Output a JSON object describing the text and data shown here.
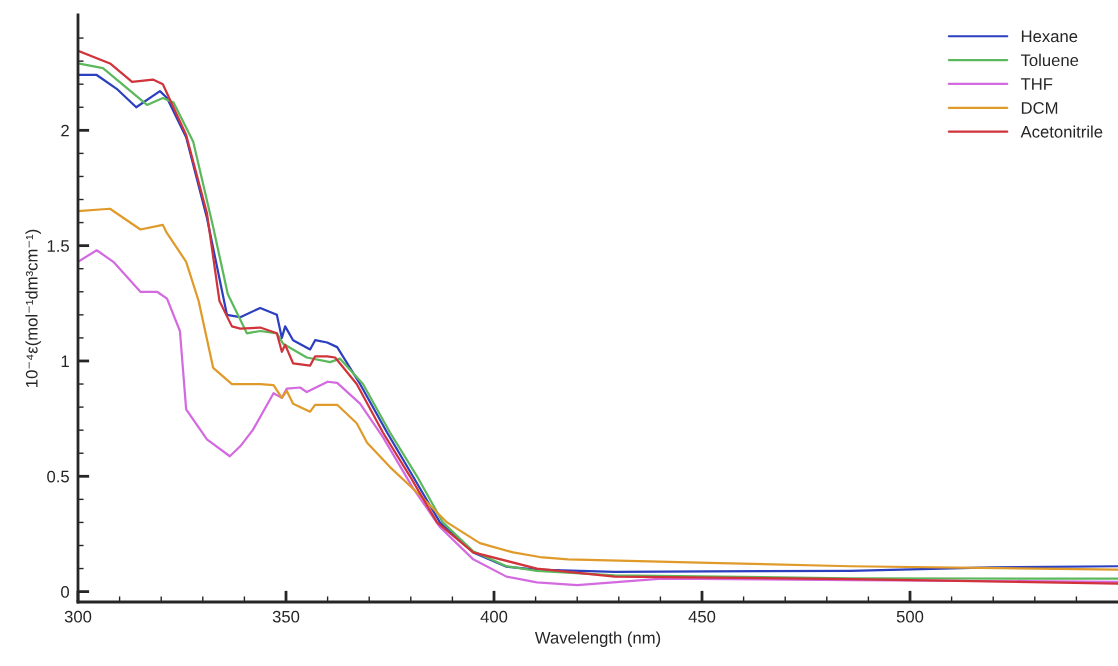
{
  "chart_data": {
    "type": "line",
    "xlabel": "Wavelength (nm)",
    "ylabel": "10⁻⁴ε(mol⁻¹dm³cm⁻¹)",
    "xlim": [
      300,
      550
    ],
    "ylim": [
      -0.045,
      2.5
    ],
    "xticks": [
      300,
      {
        "value": 310,
        "label": null
      },
      {
        "value": 320,
        "label": null
      },
      {
        "value": 330,
        "label": null
      },
      {
        "value": 340,
        "label": null
      },
      350,
      {
        "value": 360,
        "label": null
      },
      {
        "value": 370,
        "label": null
      },
      {
        "value": 380,
        "label": null
      },
      {
        "value": 390,
        "label": null
      },
      400,
      {
        "value": 410,
        "label": null
      },
      {
        "value": 420,
        "label": null
      },
      {
        "value": 430,
        "label": null
      },
      {
        "value": 440,
        "label": null
      },
      450,
      {
        "value": 460,
        "label": null
      },
      {
        "value": 470,
        "label": null
      },
      {
        "value": 480,
        "label": null
      },
      {
        "value": 490,
        "label": null
      },
      500,
      {
        "value": 510,
        "label": null
      },
      {
        "value": 520,
        "label": null
      },
      {
        "value": 530,
        "label": null
      },
      {
        "value": 540,
        "label": null
      }
    ],
    "yticks": [
      0,
      {
        "value": 0.1,
        "label": null
      },
      {
        "value": 0.2,
        "label": null
      },
      {
        "value": 0.3,
        "label": null
      },
      {
        "value": 0.4,
        "label": null
      },
      0.5,
      {
        "value": 0.6,
        "label": null
      },
      {
        "value": 0.7,
        "label": null
      },
      {
        "value": 0.8,
        "label": null
      },
      {
        "value": 0.9,
        "label": null
      },
      1,
      {
        "value": 1.1,
        "label": null
      },
      {
        "value": 1.2,
        "label": null
      },
      {
        "value": 1.3,
        "label": null
      },
      {
        "value": 1.4,
        "label": null
      },
      1.5,
      {
        "value": 1.6,
        "label": null
      },
      {
        "value": 1.7,
        "label": null
      },
      {
        "value": 1.8,
        "label": null
      },
      {
        "value": 1.9,
        "label": null
      },
      2,
      {
        "value": 2.1,
        "label": null
      },
      {
        "value": 2.2,
        "label": null
      },
      {
        "value": 2.3,
        "label": null
      },
      {
        "value": 2.4,
        "label": null
      }
    ],
    "grid": false,
    "legend": "top right",
    "marker": "none",
    "line_style": "solid",
    "series": [
      {
        "name": "Hexane",
        "color": "#2b3fbf",
        "x": [
          300,
          304.5,
          309.3,
          314,
          319.7,
          321.4,
          326,
          331,
          335.8,
          339,
          343.8,
          347.8,
          349,
          349.8,
          351.7,
          355.8,
          357,
          359.9,
          362.3,
          367.8,
          374.3,
          380.5,
          387,
          395,
          403,
          410.3,
          429,
          451.7,
          485.7,
          519.7,
          550
        ],
        "values": [
          2.24,
          2.24,
          2.18,
          2.1,
          2.17,
          2.14,
          1.97,
          1.62,
          1.2,
          1.19,
          1.23,
          1.2,
          1.1,
          1.15,
          1.09,
          1.05,
          1.09,
          1.08,
          1.06,
          0.9,
          0.69,
          0.5,
          0.3,
          0.17,
          0.108,
          0.095,
          0.086,
          0.088,
          0.09,
          0.105,
          0.11
        ]
      },
      {
        "name": "Toluene",
        "color": "#5cb85c",
        "x": [
          300,
          306,
          316.6,
          320.4,
          323,
          327.7,
          332.5,
          336,
          340.6,
          343.8,
          347.8,
          349.3,
          355,
          360.6,
          363,
          368.5,
          375,
          381.5,
          387.7,
          395,
          403,
          410.3,
          429,
          485.7,
          550
        ],
        "values": [
          2.29,
          2.27,
          2.11,
          2.14,
          2.12,
          1.95,
          1.58,
          1.29,
          1.12,
          1.13,
          1.12,
          1.075,
          1.015,
          0.995,
          1.01,
          0.9,
          0.69,
          0.5,
          0.3,
          0.175,
          0.11,
          0.09,
          0.07,
          0.058,
          0.056
        ]
      },
      {
        "name": "THF",
        "color": "#d36ae0",
        "x": [
          300,
          304.5,
          308.5,
          315,
          319,
          321.4,
          324.5,
          326,
          331,
          336.5,
          339,
          342,
          347,
          349,
          350.2,
          353.4,
          355,
          360,
          362.3,
          367.8,
          373.3,
          380.5,
          387,
          395,
          403,
          410.3,
          420,
          440.4,
          485.7,
          550
        ],
        "values": [
          1.43,
          1.48,
          1.43,
          1.3,
          1.3,
          1.27,
          1.13,
          0.79,
          0.66,
          0.587,
          0.63,
          0.7,
          0.86,
          0.84,
          0.88,
          0.885,
          0.865,
          0.91,
          0.905,
          0.815,
          0.67,
          0.45,
          0.28,
          0.14,
          0.065,
          0.04,
          0.028,
          0.056,
          0.05,
          0.042
        ]
      },
      {
        "name": "DCM",
        "color": "#e09a2a",
        "x": [
          300,
          307.7,
          315,
          320.4,
          321.2,
          326,
          329,
          332.5,
          337,
          343.8,
          347,
          349,
          350.2,
          351.7,
          355.8,
          357,
          360.6,
          362.3,
          367,
          369.5,
          375,
          381.5,
          388.7,
          396.6,
          404.6,
          411,
          417.8,
          451.7,
          485.7,
          550
        ],
        "values": [
          1.65,
          1.66,
          1.57,
          1.59,
          1.56,
          1.43,
          1.26,
          0.97,
          0.9,
          0.9,
          0.895,
          0.84,
          0.87,
          0.815,
          0.78,
          0.81,
          0.81,
          0.81,
          0.73,
          0.645,
          0.54,
          0.43,
          0.3,
          0.21,
          0.17,
          0.15,
          0.14,
          0.125,
          0.11,
          0.095
        ]
      },
      {
        "name": "Acetonitrile",
        "color": "#d0333a",
        "x": [
          300,
          307.7,
          313,
          318,
          320.4,
          326,
          331,
          334,
          337,
          339,
          343.8,
          347.8,
          349,
          349.8,
          351.7,
          355.8,
          357,
          359.9,
          361.8,
          367,
          373.3,
          379.8,
          386.3,
          395,
          410.3,
          429,
          485.7,
          550
        ],
        "values": [
          2.345,
          2.29,
          2.21,
          2.22,
          2.2,
          1.98,
          1.64,
          1.26,
          1.15,
          1.14,
          1.145,
          1.12,
          1.04,
          1.07,
          0.99,
          0.98,
          1.02,
          1.02,
          1.015,
          0.9,
          0.69,
          0.5,
          0.3,
          0.17,
          0.1,
          0.065,
          0.054,
          0.035
        ]
      }
    ]
  }
}
